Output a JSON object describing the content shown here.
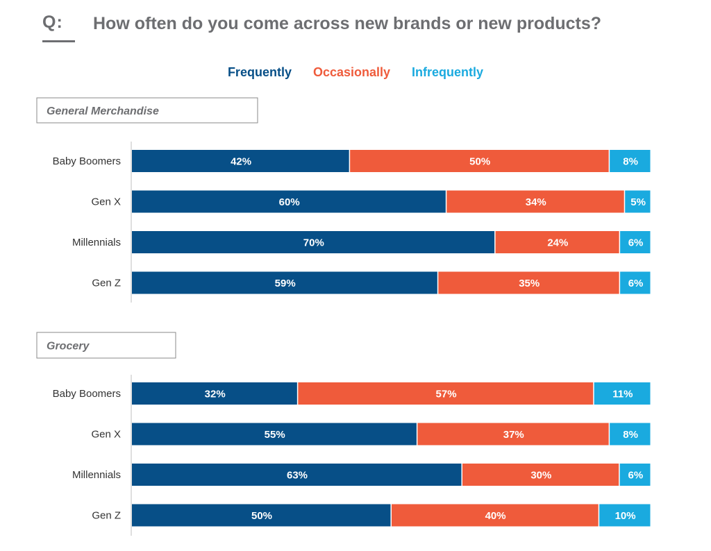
{
  "question": {
    "prefix": "Q:",
    "text": "How often do you come across new brands or new products?"
  },
  "colors": {
    "frequently": "#074f87",
    "occasionally": "#ef5b3b",
    "infrequently": "#1aaadf"
  },
  "legend": {
    "frequently": "Frequently",
    "occasionally": "Occasionally",
    "infrequently": "Infrequently"
  },
  "chart_data": [
    {
      "type": "bar",
      "orientation": "horizontal",
      "stacked": true,
      "title": "General Merchandise",
      "categories": [
        "Baby Boomers",
        "Gen X",
        "Millennials",
        "Gen Z"
      ],
      "series": [
        {
          "name": "Frequently",
          "values": [
            42,
            60,
            70,
            59
          ]
        },
        {
          "name": "Occasionally",
          "values": [
            50,
            34,
            24,
            35
          ]
        },
        {
          "name": "Infrequently",
          "values": [
            8,
            5,
            6,
            6
          ]
        }
      ],
      "value_suffix": "%",
      "legend": "top-center"
    },
    {
      "type": "bar",
      "orientation": "horizontal",
      "stacked": true,
      "title": "Grocery",
      "categories": [
        "Baby Boomers",
        "Gen X",
        "Millennials",
        "Gen Z"
      ],
      "series": [
        {
          "name": "Frequently",
          "values": [
            32,
            55,
            63,
            50
          ]
        },
        {
          "name": "Occasionally",
          "values": [
            57,
            37,
            30,
            40
          ]
        },
        {
          "name": "Infrequently",
          "values": [
            11,
            8,
            6,
            10
          ]
        }
      ],
      "value_suffix": "%",
      "legend": "top-center"
    }
  ]
}
